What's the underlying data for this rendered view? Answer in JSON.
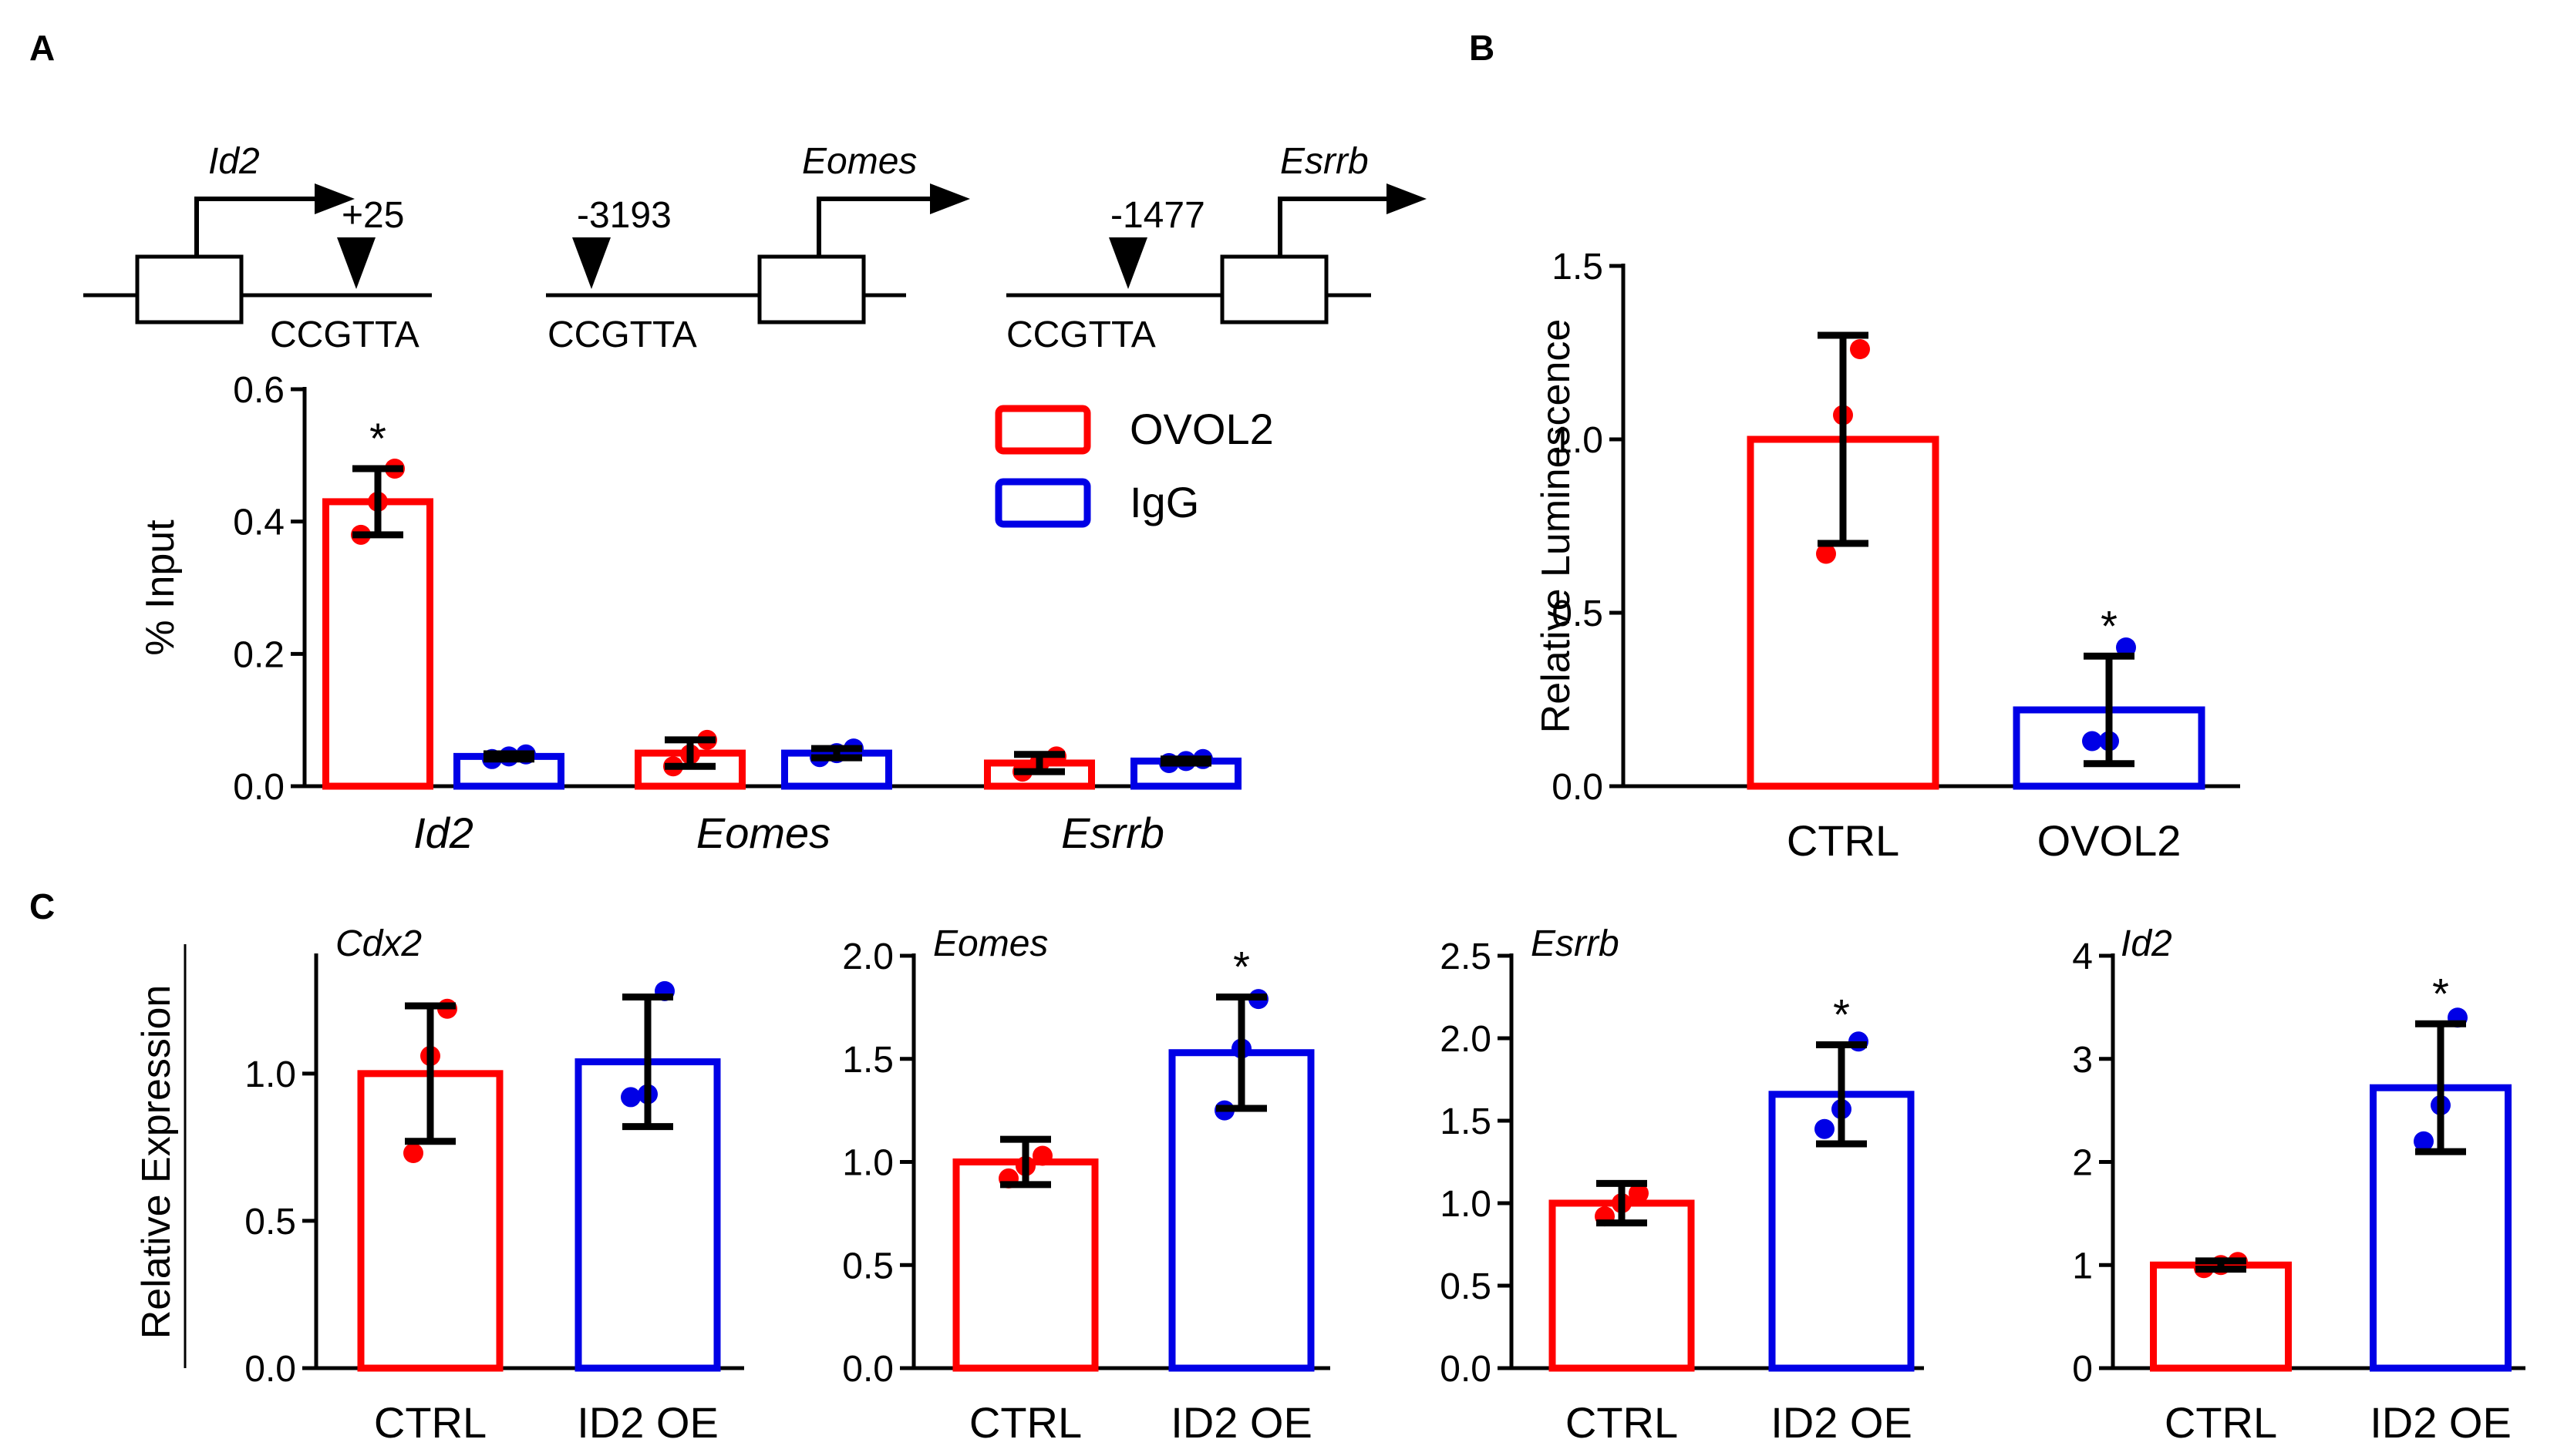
{
  "colors": {
    "ovol2": "#ff0000",
    "igg": "#0000e6",
    "ctrl": "#ff0000",
    "oe": "#0000e6",
    "err": "#000000"
  },
  "panels": {
    "A": "A",
    "B": "B",
    "C": "C"
  },
  "diagram": {
    "promoters": [
      {
        "gene": "Id2",
        "offset": "+25",
        "motif": "CCGTTA"
      },
      {
        "gene": "Eomes",
        "offset": "-3193",
        "motif": "CCGTTA"
      },
      {
        "gene": "Esrrb",
        "offset": "-1477",
        "motif": "CCGTTA"
      }
    ]
  },
  "chart_data": [
    {
      "panel": "A",
      "type": "bar",
      "ylabel": "% Input",
      "ylim": [
        0,
        0.6
      ],
      "yticks": [
        "0.0",
        "0.2",
        "0.4",
        "0.6"
      ],
      "categories": [
        "Id2",
        "Eomes",
        "Esrrb"
      ],
      "legend": [
        "OVOL2",
        "IgG"
      ],
      "legend_position": "top-right",
      "series": [
        {
          "name": "OVOL2",
          "values": [
            0.43,
            0.05,
            0.035
          ],
          "err": [
            0.05,
            0.02,
            0.013
          ],
          "points": [
            [
              0.38,
              0.43,
              0.48
            ],
            [
              0.03,
              0.048,
              0.07
            ],
            [
              0.022,
              0.035,
              0.045
            ]
          ]
        },
        {
          "name": "IgG",
          "values": [
            0.045,
            0.05,
            0.038
          ],
          "err": [
            0.004,
            0.007,
            0.003
          ],
          "points": [
            [
              0.041,
              0.045,
              0.048
            ],
            [
              0.044,
              0.05,
              0.057
            ],
            [
              0.035,
              0.038,
              0.041
            ]
          ]
        }
      ],
      "significance": [
        "*",
        "",
        ""
      ]
    },
    {
      "panel": "B",
      "type": "bar",
      "ylabel": "Relative Luminescence",
      "ylim": [
        0,
        1.5
      ],
      "yticks": [
        "0.0",
        "0.5",
        "1.0",
        "1.5"
      ],
      "categories": [
        "CTRL",
        "OVOL2"
      ],
      "values": [
        1.0,
        0.22
      ],
      "err": [
        0.3,
        0.155
      ],
      "points": [
        [
          0.67,
          1.07,
          1.26
        ],
        [
          0.13,
          0.13,
          0.4
        ]
      ],
      "significance": [
        "",
        "*"
      ]
    },
    {
      "panel": "C",
      "type": "bar",
      "title": "Cdx2",
      "ylabel": "Relative Expression",
      "ylim": [
        0,
        1.4
      ],
      "yticks": [
        "0.0",
        "0.5",
        "1.0"
      ],
      "categories": [
        "CTRL",
        "ID2 OE"
      ],
      "values": [
        1.0,
        1.04
      ],
      "err": [
        0.23,
        0.22
      ],
      "points": [
        [
          0.73,
          1.06,
          1.22
        ],
        [
          0.92,
          0.93,
          1.28
        ]
      ],
      "significance": [
        "",
        ""
      ]
    },
    {
      "panel": "C",
      "type": "bar",
      "title": "Eomes",
      "ylabel": "",
      "ylim": [
        0,
        2.0
      ],
      "yticks": [
        "0.0",
        "0.5",
        "1.0",
        "1.5",
        "2.0"
      ],
      "categories": [
        "CTRL",
        "ID2 OE"
      ],
      "values": [
        1.0,
        1.53
      ],
      "err": [
        0.11,
        0.27
      ],
      "points": [
        [
          0.92,
          0.98,
          1.03
        ],
        [
          1.25,
          1.55,
          1.79
        ]
      ],
      "significance": [
        "",
        "*"
      ]
    },
    {
      "panel": "C",
      "type": "bar",
      "title": "Esrrb",
      "ylabel": "",
      "ylim": [
        0,
        2.5
      ],
      "yticks": [
        "0.0",
        "0.5",
        "1.0",
        "1.5",
        "2.0",
        "2.5"
      ],
      "categories": [
        "CTRL",
        "ID2 OE"
      ],
      "values": [
        1.0,
        1.66
      ],
      "err": [
        0.12,
        0.3
      ],
      "points": [
        [
          0.92,
          1.0,
          1.06
        ],
        [
          1.45,
          1.57,
          1.98
        ]
      ],
      "significance": [
        "",
        "*"
      ]
    },
    {
      "panel": "C",
      "type": "bar",
      "title": "Id2",
      "ylabel": "",
      "ylim": [
        0,
        4
      ],
      "yticks": [
        "0",
        "1",
        "2",
        "3",
        "4"
      ],
      "categories": [
        "CTRL",
        "ID2 OE"
      ],
      "values": [
        1.0,
        2.72
      ],
      "err": [
        0.04,
        0.62
      ],
      "points": [
        [
          0.97,
          1.0,
          1.03
        ],
        [
          2.2,
          2.55,
          3.4
        ]
      ],
      "significance": [
        "",
        "*"
      ]
    }
  ]
}
